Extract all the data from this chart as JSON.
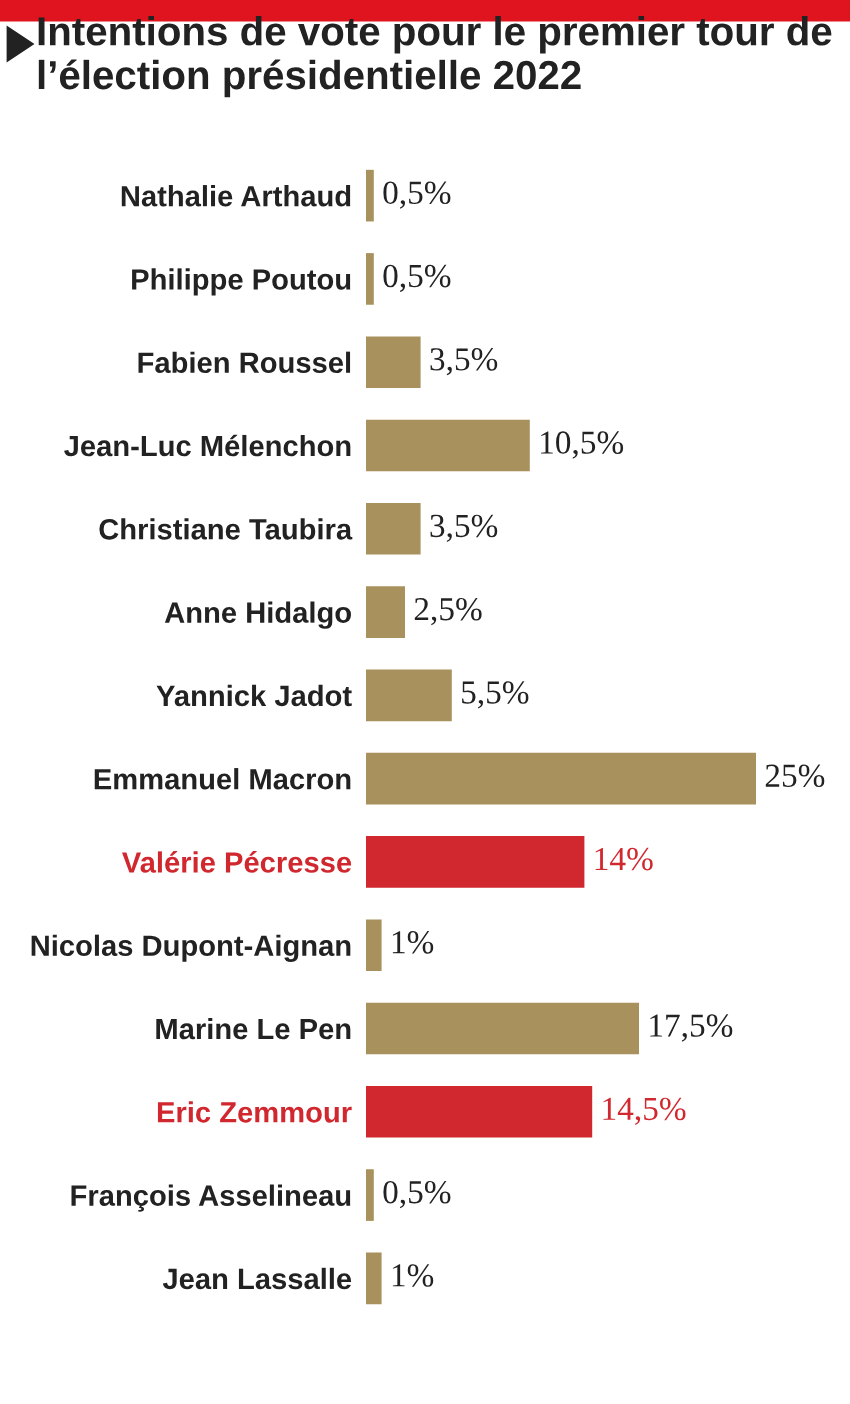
{
  "chart_data": {
    "type": "bar",
    "orientation": "horizontal",
    "title": "Intentions de vote pour le premier tour de l’élection présidentielle 2022",
    "categories": [
      "Nathalie Arthaud",
      "Philippe Poutou",
      "Fabien Roussel",
      "Jean-Luc Mélenchon",
      "Christiane Taubira",
      "Anne Hidalgo",
      "Yannick Jadot",
      "Emmanuel Macron",
      "Valérie Pécresse",
      "Nicolas Dupont-Aignan",
      "Marine Le Pen",
      "Eric Zemmour",
      "François Asselineau",
      "Jean Lassalle"
    ],
    "values": [
      0.5,
      0.5,
      3.5,
      10.5,
      3.5,
      2.5,
      5.5,
      25,
      14,
      1,
      17.5,
      14.5,
      0.5,
      1
    ],
    "value_labels": [
      "0,5%",
      "0,5%",
      "3,5%",
      "10,5%",
      "3,5%",
      "2,5%",
      "5,5%",
      "25%",
      "14%",
      "1%",
      "17,5%",
      "14,5%",
      "0,5%",
      "1%"
    ],
    "colors": [
      "#a8915c",
      "#a8915c",
      "#a8915c",
      "#a8915c",
      "#a8915c",
      "#a8915c",
      "#a8915c",
      "#a8915c",
      "#d0282e",
      "#a8915c",
      "#a8915c",
      "#d0282e",
      "#a8915c",
      "#a8915c"
    ],
    "grid": false,
    "legend": false
  }
}
